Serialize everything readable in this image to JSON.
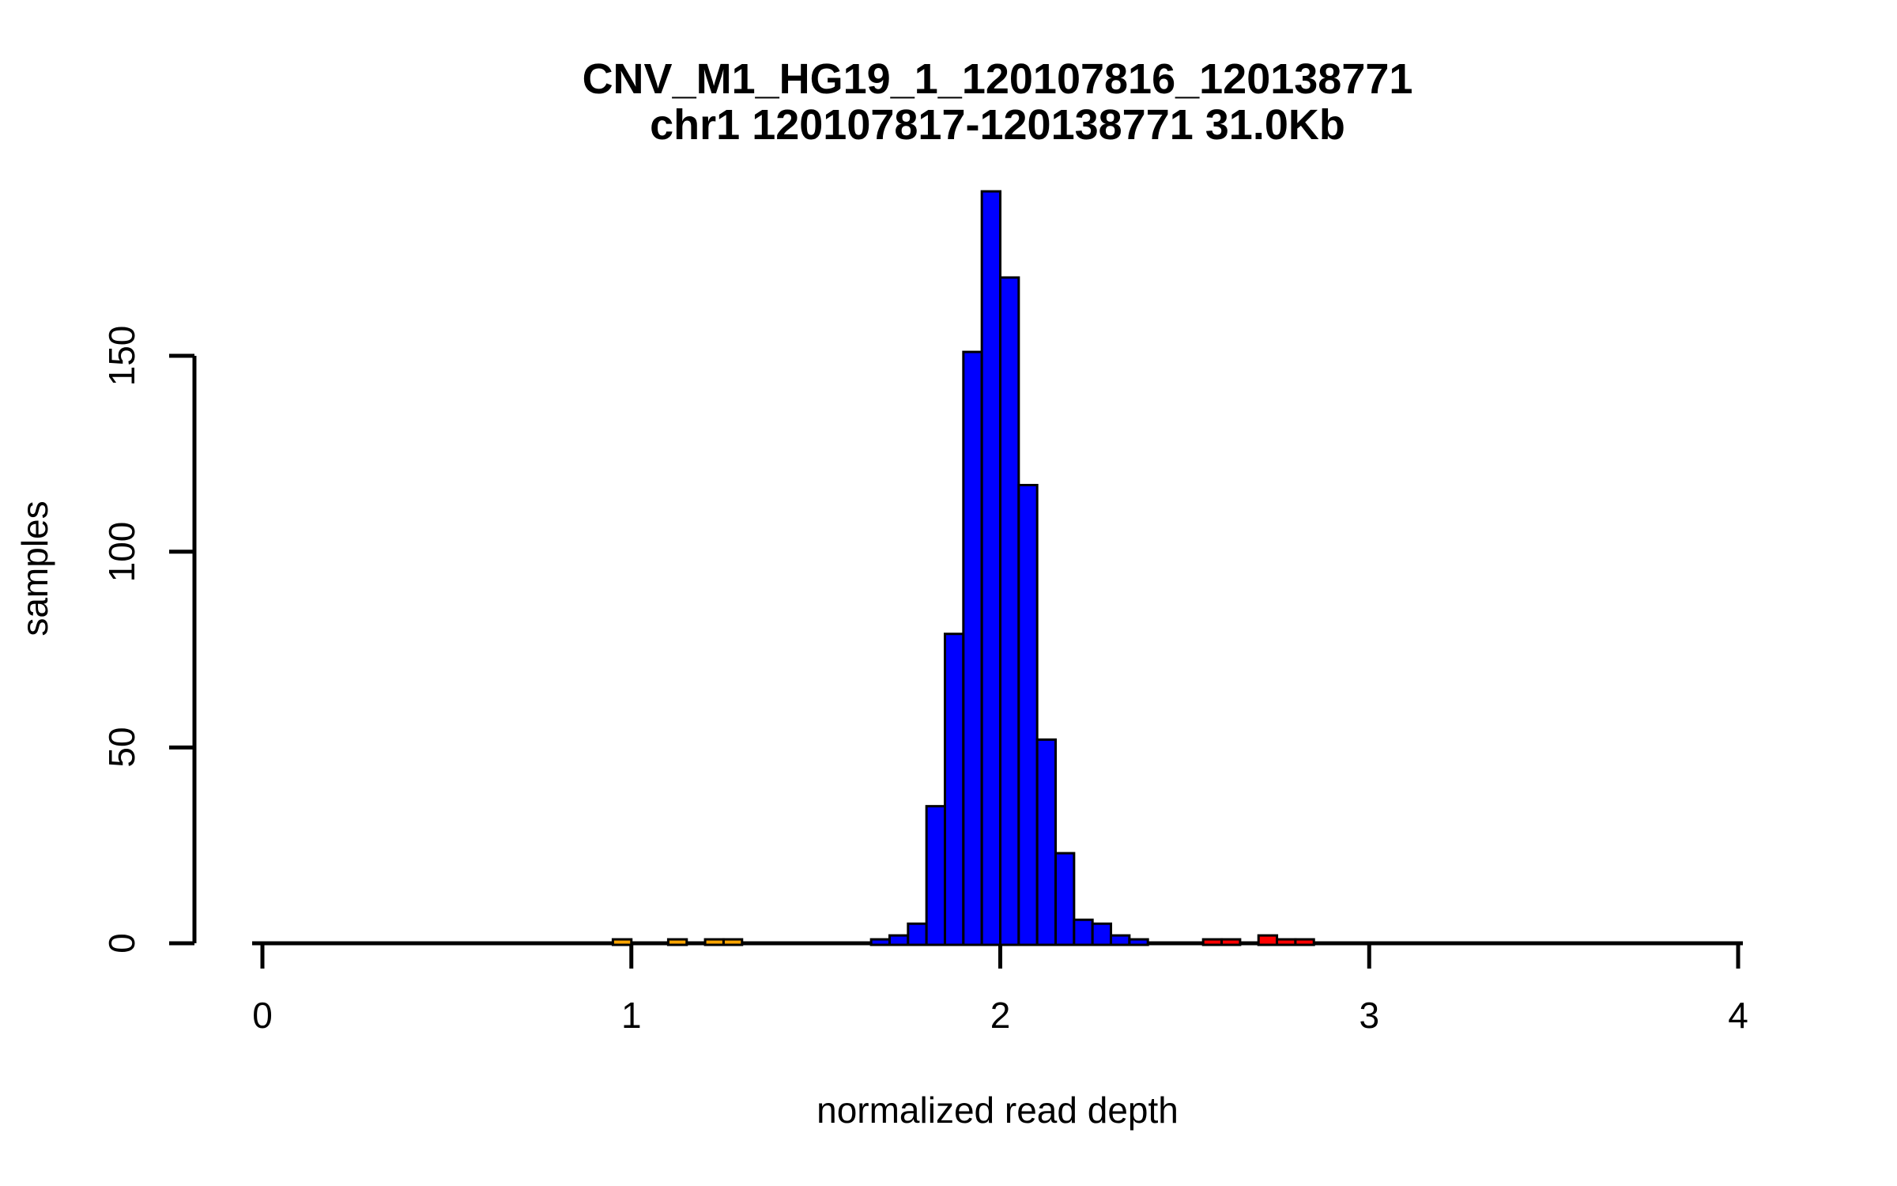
{
  "chart_data": {
    "type": "bar",
    "subtype": "histogram",
    "title": "CNV_M1_HG19_1_120107816_120138771",
    "subtitle": "chr1 120107817-120138771 31.0Kb",
    "xlabel": "normalized read depth",
    "ylabel": "samples",
    "x_axis_ticks": [
      0,
      1,
      2,
      3,
      4
    ],
    "y_axis_ticks": [
      0,
      50,
      100,
      150
    ],
    "xlim": [
      0,
      4
    ],
    "ylim": [
      0,
      195
    ],
    "grid": false,
    "legend": null,
    "bin_width": 0.05,
    "colors": {
      "main_peak": "#0000FF",
      "low_outliers": "#FFA500",
      "high_outliers": "#FF0000",
      "border": "#000000"
    },
    "bars": [
      {
        "x0": 0.95,
        "x1": 1.0,
        "count": 1,
        "color": "#FFA500"
      },
      {
        "x0": 1.1,
        "x1": 1.15,
        "count": 1,
        "color": "#FFA500"
      },
      {
        "x0": 1.2,
        "x1": 1.25,
        "count": 1,
        "color": "#FFA500"
      },
      {
        "x0": 1.25,
        "x1": 1.3,
        "count": 1,
        "color": "#FFA500"
      },
      {
        "x0": 1.65,
        "x1": 1.7,
        "count": 1,
        "color": "#0000FF"
      },
      {
        "x0": 1.7,
        "x1": 1.75,
        "count": 2,
        "color": "#0000FF"
      },
      {
        "x0": 1.75,
        "x1": 1.8,
        "count": 5,
        "color": "#0000FF"
      },
      {
        "x0": 1.8,
        "x1": 1.85,
        "count": 35,
        "color": "#0000FF"
      },
      {
        "x0": 1.85,
        "x1": 1.9,
        "count": 79,
        "color": "#0000FF"
      },
      {
        "x0": 1.9,
        "x1": 1.95,
        "count": 151,
        "color": "#0000FF"
      },
      {
        "x0": 1.95,
        "x1": 2.0,
        "count": 192,
        "color": "#0000FF"
      },
      {
        "x0": 2.0,
        "x1": 2.05,
        "count": 170,
        "color": "#0000FF"
      },
      {
        "x0": 2.05,
        "x1": 2.1,
        "count": 117,
        "color": "#0000FF"
      },
      {
        "x0": 2.1,
        "x1": 2.15,
        "count": 52,
        "color": "#0000FF"
      },
      {
        "x0": 2.15,
        "x1": 2.2,
        "count": 23,
        "color": "#0000FF"
      },
      {
        "x0": 2.2,
        "x1": 2.25,
        "count": 6,
        "color": "#0000FF"
      },
      {
        "x0": 2.25,
        "x1": 2.3,
        "count": 5,
        "color": "#0000FF"
      },
      {
        "x0": 2.3,
        "x1": 2.35,
        "count": 2,
        "color": "#0000FF"
      },
      {
        "x0": 2.35,
        "x1": 2.4,
        "count": 1,
        "color": "#0000FF"
      },
      {
        "x0": 2.55,
        "x1": 2.6,
        "count": 1,
        "color": "#FF0000"
      },
      {
        "x0": 2.6,
        "x1": 2.65,
        "count": 1,
        "color": "#FF0000"
      },
      {
        "x0": 2.7,
        "x1": 2.75,
        "count": 2,
        "color": "#FF0000"
      },
      {
        "x0": 2.75,
        "x1": 2.8,
        "count": 1,
        "color": "#FF0000"
      },
      {
        "x0": 2.8,
        "x1": 2.85,
        "count": 1,
        "color": "#FF0000"
      }
    ]
  }
}
